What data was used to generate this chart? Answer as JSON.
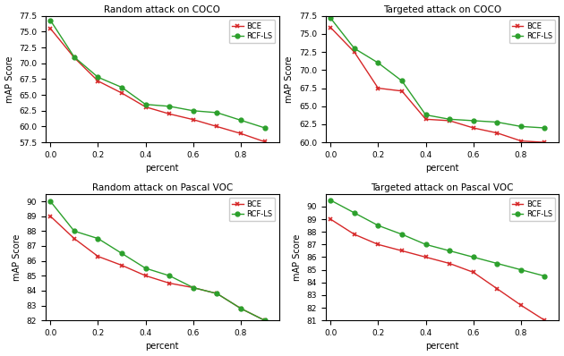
{
  "plots": [
    {
      "title": "Random attack on COCO",
      "ylabel": "mAP Score",
      "xlabel": "percent",
      "x": [
        0.0,
        0.1,
        0.2,
        0.3,
        0.4,
        0.5,
        0.6,
        0.7,
        0.8,
        0.9
      ],
      "bce": [
        75.5,
        70.9,
        67.2,
        65.3,
        63.1,
        62.0,
        61.1,
        60.0,
        58.9,
        57.6
      ],
      "rcf_ls": [
        76.8,
        71.0,
        67.8,
        66.2,
        63.5,
        63.2,
        62.5,
        62.2,
        61.0,
        59.8
      ],
      "ylim": [
        57.5,
        77.5
      ],
      "yticks": [
        57.5,
        60.0,
        62.5,
        65.0,
        67.5,
        70.0,
        72.5,
        75.0,
        77.5
      ]
    },
    {
      "title": "Targeted attack on COCO",
      "ylabel": "mAP Score",
      "xlabel": "percent",
      "x": [
        0.0,
        0.1,
        0.2,
        0.3,
        0.4,
        0.5,
        0.6,
        0.7,
        0.8,
        0.9
      ],
      "bce": [
        75.9,
        72.5,
        67.5,
        67.1,
        63.2,
        63.0,
        62.0,
        61.3,
        60.2,
        60.0
      ],
      "rcf_ls": [
        77.2,
        73.0,
        71.0,
        68.5,
        63.8,
        63.2,
        63.0,
        62.8,
        62.2,
        62.0
      ],
      "ylim": [
        60.0,
        77.5
      ],
      "yticks": [
        60.0,
        62.5,
        65.0,
        67.5,
        70.0,
        72.5,
        75.0,
        77.5
      ]
    },
    {
      "title": "Random attack on Pascal VOC",
      "ylabel": "mAP Score",
      "xlabel": "percent",
      "x": [
        0.0,
        0.1,
        0.2,
        0.3,
        0.4,
        0.5,
        0.6,
        0.7,
        0.8,
        0.9
      ],
      "bce": [
        89.0,
        87.5,
        86.3,
        85.7,
        85.0,
        84.5,
        84.2,
        83.8,
        82.8,
        82.0
      ],
      "rcf_ls": [
        90.0,
        88.0,
        87.5,
        86.5,
        85.5,
        85.0,
        84.2,
        83.8,
        82.8,
        82.0
      ],
      "ylim": [
        82.0,
        90.5
      ],
      "yticks": [
        82,
        83,
        84,
        85,
        86,
        87,
        88,
        89,
        90
      ]
    },
    {
      "title": "Targeted attack on Pascal VOC",
      "ylabel": "mAP Score",
      "xlabel": "percent",
      "x": [
        0.0,
        0.1,
        0.2,
        0.3,
        0.4,
        0.5,
        0.6,
        0.7,
        0.8,
        0.9
      ],
      "bce": [
        89.0,
        87.8,
        87.0,
        86.5,
        86.0,
        85.5,
        84.8,
        83.5,
        82.2,
        81.0
      ],
      "rcf_ls": [
        90.5,
        89.5,
        88.5,
        87.8,
        87.0,
        86.5,
        86.0,
        85.5,
        85.0,
        84.5
      ],
      "ylim": [
        81.0,
        91.0
      ],
      "yticks": [
        81,
        82,
        83,
        84,
        85,
        86,
        87,
        88,
        89,
        90
      ]
    }
  ],
  "color_bce": "#d62728",
  "color_rcf": "#2ca02c",
  "marker_bce": "x",
  "marker_rcf": "o",
  "label_bce": "BCE",
  "label_rcf": "RCF-LS",
  "xticks": [
    0.0,
    0.2,
    0.4,
    0.6,
    0.8
  ],
  "xlim": [
    -0.02,
    0.96
  ]
}
